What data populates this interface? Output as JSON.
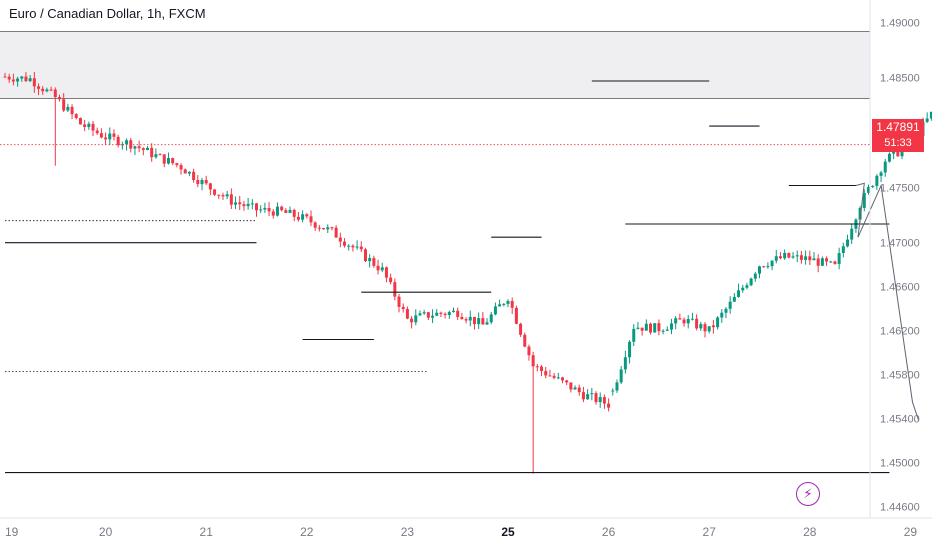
{
  "title": "Euro / Canadian Dollar, 1h, FXCM",
  "price": {
    "current": "1.47891",
    "countdown": "51:33",
    "value": 1.47891
  },
  "colors": {
    "up": "#089981",
    "down": "#f23645",
    "line": "#131722",
    "zone": "#e9e9ec",
    "axis_text": "#787b86",
    "bolt": "#9c27b0"
  },
  "icons": {
    "alert": "lightning-bolt-icon"
  },
  "chart_data": {
    "type": "candlestick",
    "symbol": "Euro / Canadian Dollar",
    "timeframe": "1h",
    "source": "FXCM",
    "ylim": [
      1.4435,
      1.4915
    ],
    "y_ticks": [
      "1.49000",
      "1.48500",
      "1.48000",
      "1.47500",
      "1.47000",
      "1.46600",
      "1.46200",
      "1.45800",
      "1.45400",
      "1.45000",
      "1.44600"
    ],
    "y_tick_values": [
      1.49,
      1.485,
      1.48,
      1.475,
      1.47,
      1.466,
      1.462,
      1.458,
      1.454,
      1.45,
      1.446
    ],
    "x_ticks": [
      "19",
      "20",
      "21",
      "22",
      "23",
      "25",
      "26",
      "27",
      "28",
      "29"
    ],
    "x_tick_bold": [
      "25"
    ],
    "x_tick_days": [
      0,
      1,
      2,
      3,
      4,
      5,
      6,
      7,
      8,
      9
    ],
    "candles_per_day": 24,
    "path": [
      [
        0,
        1.4851
      ],
      [
        6,
        1.4849
      ],
      [
        12,
        1.4832
      ],
      [
        18,
        1.4808
      ],
      [
        24,
        1.4796
      ],
      [
        30,
        1.479
      ],
      [
        36,
        1.4779
      ],
      [
        42,
        1.4769
      ],
      [
        48,
        1.4752
      ],
      [
        54,
        1.4738
      ],
      [
        60,
        1.473
      ],
      [
        66,
        1.4728
      ],
      [
        72,
        1.4721
      ],
      [
        78,
        1.471
      ],
      [
        84,
        1.4693
      ],
      [
        90,
        1.4675
      ],
      [
        96,
        1.463
      ],
      [
        102,
        1.4635
      ],
      [
        108,
        1.4637
      ],
      [
        114,
        1.4625
      ],
      [
        120,
        1.4651
      ],
      [
        126,
        1.4588
      ],
      [
        132,
        1.4575
      ],
      [
        138,
        1.4562
      ],
      [
        144,
        1.4553
      ],
      [
        150,
        1.4624
      ],
      [
        156,
        1.4622
      ],
      [
        162,
        1.463
      ],
      [
        168,
        1.462
      ],
      [
        174,
        1.4649
      ],
      [
        180,
        1.468
      ],
      [
        186,
        1.4687
      ],
      [
        192,
        1.4685
      ],
      [
        198,
        1.4678
      ],
      [
        204,
        1.4735
      ],
      [
        210,
        1.4775
      ],
      [
        216,
        1.479
      ],
      [
        222,
        1.4822
      ],
      [
        228,
        1.4838
      ],
      [
        234,
        1.4832
      ],
      [
        240,
        1.4728
      ],
      [
        246,
        1.4728
      ],
      [
        252,
        1.473
      ],
      [
        258,
        1.4735
      ],
      [
        264,
        1.4745
      ],
      [
        270,
        1.4778
      ],
      [
        276,
        1.4795
      ],
      [
        282,
        1.4845
      ],
      [
        288,
        1.4828
      ],
      [
        294,
        1.4825
      ],
      [
        300,
        1.481
      ],
      [
        306,
        1.48
      ],
      [
        312,
        1.4786
      ],
      [
        318,
        1.4775
      ],
      [
        324,
        1.4753
      ],
      [
        330,
        1.4772
      ],
      [
        336,
        1.4782
      ],
      [
        342,
        1.4789
      ]
    ],
    "gaps": [
      145,
      169,
      241
    ],
    "spikes": [
      [
        12,
        1.477
      ],
      [
        126,
        1.449
      ],
      [
        282,
        1.4858
      ]
    ],
    "zone": [
      1.4831,
      1.4892
    ],
    "horizontal_lines": [
      {
        "price": 1.47,
        "from": 0,
        "to": 60,
        "style": "solid"
      },
      {
        "price": 1.472,
        "from": 0,
        "to": 60,
        "style": "dotted"
      },
      {
        "price": 1.4612,
        "from": 71,
        "to": 88,
        "style": "solid"
      },
      {
        "price": 1.4655,
        "from": 85,
        "to": 116,
        "style": "solid"
      },
      {
        "price": 1.4583,
        "from": 0,
        "to": 101,
        "style": "dotted"
      },
      {
        "price": 1.4491,
        "from": 0,
        "to": 211,
        "style": "solid"
      },
      {
        "price": 1.4705,
        "from": 116,
        "to": 128,
        "style": "solid"
      },
      {
        "price": 1.4847,
        "from": 140,
        "to": 168,
        "style": "solid"
      },
      {
        "price": 1.4717,
        "from": 148,
        "to": 211,
        "style": "solid"
      },
      {
        "price": 1.4806,
        "from": 168,
        "to": 180,
        "style": "solid"
      },
      {
        "price": 1.4752,
        "from": 187,
        "to": 203,
        "style": "solid"
      }
    ],
    "projection": [
      [
        203,
        1.4752
      ],
      [
        205,
        1.4754
      ],
      [
        203.5,
        1.4705
      ],
      [
        209,
        1.4752
      ],
      [
        216.5,
        1.4555
      ],
      [
        218,
        1.4538
      ]
    ]
  }
}
